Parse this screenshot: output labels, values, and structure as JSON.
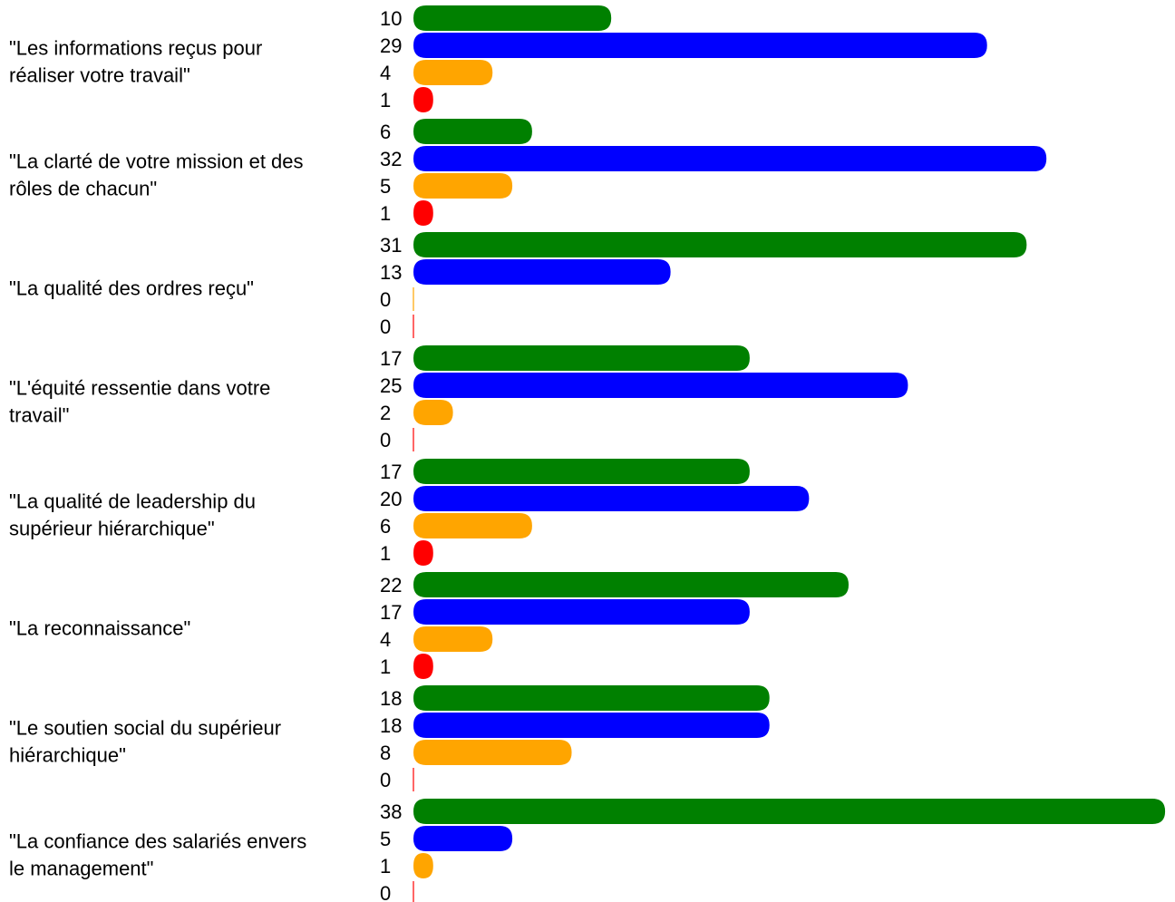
{
  "chart_data": {
    "type": "bar",
    "orientation": "horizontal",
    "categories": [
      [
        "\"Les informations reçus pour",
        "réaliser votre travail\""
      ],
      [
        "\"La clarté de votre mission et des",
        "rôles de chacun\""
      ],
      [
        "\"La qualité des ordres reçu\""
      ],
      [
        "\"L'équité ressentie dans votre",
        "travail\""
      ],
      [
        "\"La qualité de leadership du",
        "supérieur hiérarchique\""
      ],
      [
        "\"La reconnaissance\""
      ],
      [
        "\"Le soutien social du supérieur",
        "hiérarchique\""
      ],
      [
        "\"La confiance des salariés envers",
        "le management\""
      ]
    ],
    "series": [
      {
        "color": "#008000",
        "values": [
          10,
          6,
          31,
          17,
          17,
          22,
          18,
          38
        ]
      },
      {
        "color": "#0000ff",
        "values": [
          29,
          32,
          13,
          25,
          20,
          17,
          18,
          5
        ]
      },
      {
        "color": "#ffa500",
        "values": [
          4,
          5,
          0,
          2,
          6,
          4,
          8,
          1
        ]
      },
      {
        "color": "#ff0000",
        "values": [
          1,
          1,
          0,
          0,
          1,
          1,
          0,
          0
        ]
      }
    ],
    "xlabel": "",
    "ylabel": "",
    "grid": false,
    "legend": "none"
  }
}
